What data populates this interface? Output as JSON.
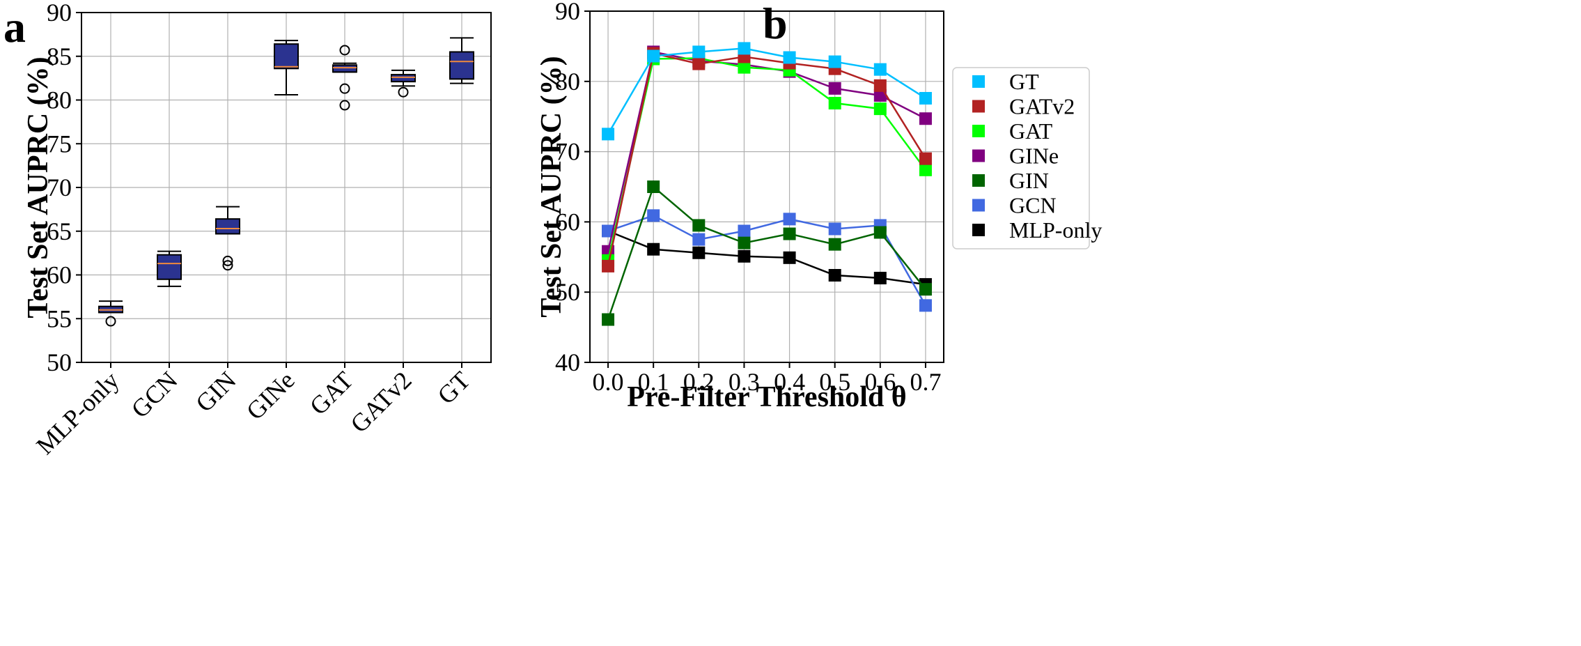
{
  "figure": {
    "panel_a_letter": "a",
    "panel_b_letter": "b"
  },
  "chart_data": [
    {
      "type": "box",
      "panel": "a",
      "title": "",
      "xlabel": "",
      "ylabel": "Test Set AUPRC (%)",
      "ylim": [
        50,
        90
      ],
      "yticks": [
        50,
        55,
        60,
        65,
        70,
        75,
        80,
        85,
        90
      ],
      "grid": true,
      "categories": [
        "MLP-only",
        "GCN",
        "GIN",
        "GINe",
        "GAT",
        "GATv2",
        "GT"
      ],
      "boxes": [
        {
          "label": "MLP-only",
          "whisker_low": 55.7,
          "q1": 55.7,
          "median": 56.0,
          "q3": 56.4,
          "whisker_high": 57.0,
          "outliers": [
            54.7
          ]
        },
        {
          "label": "GCN",
          "whisker_low": 58.7,
          "q1": 59.5,
          "median": 61.3,
          "q3": 62.3,
          "whisker_high": 62.7,
          "outliers": []
        },
        {
          "label": "GIN",
          "whisker_low": 64.7,
          "q1": 64.7,
          "median": 65.3,
          "q3": 66.4,
          "whisker_high": 67.8,
          "outliers": [
            61.1,
            61.6
          ]
        },
        {
          "label": "GINe",
          "whisker_low": 80.6,
          "q1": 83.6,
          "median": 83.8,
          "q3": 86.4,
          "whisker_high": 86.8,
          "outliers": []
        },
        {
          "label": "GAT",
          "whisker_low": 83.2,
          "q1": 83.2,
          "median": 83.7,
          "q3": 84.0,
          "whisker_high": 84.2,
          "outliers": [
            85.7,
            81.3,
            79.4
          ]
        },
        {
          "label": "GATv2",
          "whisker_low": 81.6,
          "q1": 82.1,
          "median": 82.6,
          "q3": 82.9,
          "whisker_high": 83.4,
          "outliers": [
            80.9
          ]
        },
        {
          "label": "GT",
          "whisker_low": 81.9,
          "q1": 82.4,
          "median": 84.4,
          "q3": 85.5,
          "whisker_high": 87.1,
          "outliers": []
        }
      ],
      "colors": {
        "box_fill": "#2b3390",
        "box_edge": "#000000",
        "median": "#f08a3c"
      }
    },
    {
      "type": "line",
      "panel": "b",
      "title": "",
      "xlabel": "Pre-Filter Threshold θ",
      "ylabel": "Test Set AUPRC (%)",
      "ylim": [
        40,
        90
      ],
      "xlim": [
        -0.04,
        0.74
      ],
      "yticks": [
        40,
        50,
        60,
        70,
        80,
        90
      ],
      "xticks": [
        0.0,
        0.1,
        0.2,
        0.3,
        0.4,
        0.5,
        0.6,
        0.7
      ],
      "xtick_labels": [
        "0.0",
        "0.1",
        "0.2",
        "0.3",
        "0.4",
        "0.5",
        "0.6",
        "0.7"
      ],
      "grid": true,
      "legend_position": "right-outside",
      "x": [
        0.0,
        0.1,
        0.2,
        0.3,
        0.4,
        0.5,
        0.6,
        0.7
      ],
      "series": [
        {
          "name": "MLP-only",
          "color": "#000000",
          "values": [
            58.7,
            56.1,
            55.6,
            55.1,
            54.9,
            52.4,
            52.0,
            51.1
          ]
        },
        {
          "name": "GCN",
          "color": "#4169e1",
          "values": [
            58.7,
            60.9,
            57.5,
            58.7,
            60.4,
            59.0,
            59.5,
            48.1
          ]
        },
        {
          "name": "GIN",
          "color": "#006400",
          "values": [
            46.1,
            65.0,
            59.5,
            57.0,
            58.3,
            56.8,
            58.5,
            50.4
          ]
        },
        {
          "name": "GINe",
          "color": "#800080",
          "values": [
            55.8,
            84.2,
            82.9,
            82.4,
            81.4,
            79.0,
            78.0,
            74.7
          ]
        },
        {
          "name": "GAT",
          "color": "#00ff00",
          "values": [
            54.5,
            83.2,
            83.3,
            82.0,
            81.6,
            76.9,
            76.1,
            67.4
          ]
        },
        {
          "name": "GATv2",
          "color": "#b22222",
          "values": [
            53.7,
            84.0,
            82.5,
            83.5,
            82.6,
            81.8,
            79.4,
            69.0
          ]
        },
        {
          "name": "GT",
          "color": "#00bfff",
          "values": [
            72.5,
            83.6,
            84.2,
            84.7,
            83.4,
            82.8,
            81.7,
            77.6
          ]
        }
      ],
      "legend_order": [
        "GT",
        "GATv2",
        "GAT",
        "GINe",
        "GIN",
        "GCN",
        "MLP-only"
      ]
    }
  ]
}
